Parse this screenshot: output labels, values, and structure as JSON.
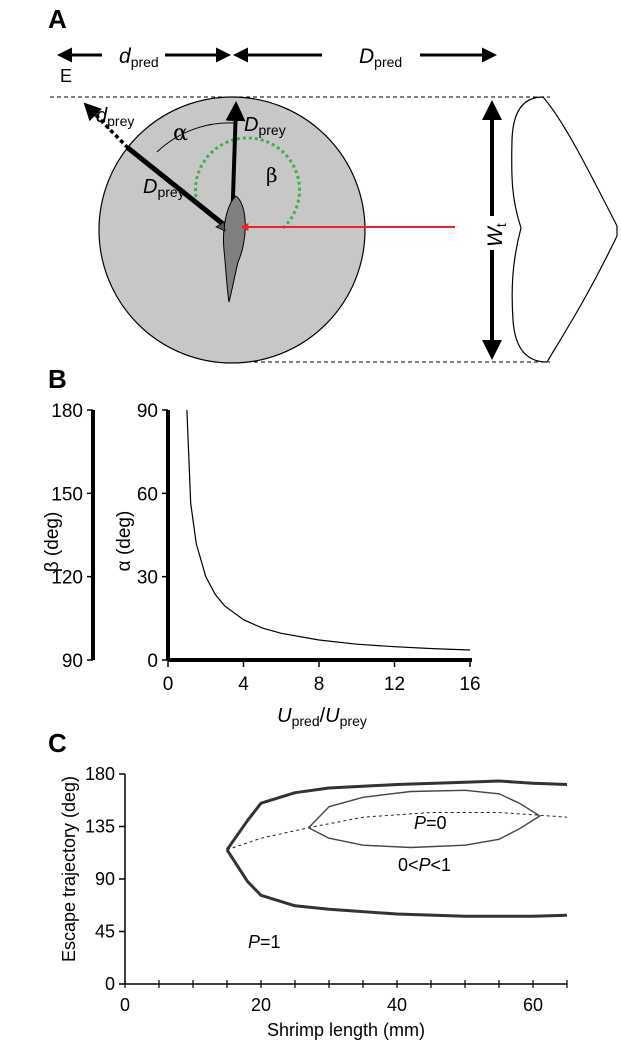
{
  "panel_a": {
    "label": "A",
    "top_left": "d",
    "top_left_sub": "pred",
    "top_right": "D",
    "top_right_sub": "pred",
    "point": "E",
    "prey_small": "d",
    "prey_small_sub": "prey",
    "prey_up": "D",
    "prey_up_sub": "prey",
    "prey_left": "D",
    "prey_left_sub": "prey",
    "alpha": "α",
    "beta": "β",
    "width": "W",
    "width_sub": "t",
    "colors": {
      "disc": "#c7c7c7",
      "predator_path": "#e8242a",
      "beta_arc": "#3cb34a"
    }
  },
  "chart_data": [
    {
      "panel": "B",
      "type": "line",
      "xlabel_main": "U",
      "xlabel_main_sub": "pred",
      "xlabel_sep": "/",
      "xlabel_den": "U",
      "xlabel_den_sub": "prey",
      "ylabel": "α (deg)",
      "ylabel2": "β (deg)",
      "xlim": [
        0,
        16
      ],
      "ylim": [
        0,
        90
      ],
      "y2lim": [
        90,
        180
      ],
      "xticks": [
        "0",
        "4",
        "8",
        "12",
        "16"
      ],
      "yticks": [
        "0",
        "30",
        "60",
        "90"
      ],
      "y2ticks": [
        "90",
        "120",
        "150",
        "180"
      ],
      "series": [
        {
          "x": [
            1.0,
            1.2,
            1.5,
            2.0,
            2.5,
            3.0,
            4.0,
            5.0,
            6.0,
            8.0,
            10.0,
            12.0,
            14.0,
            16.0
          ],
          "y": [
            90,
            56.4,
            41.8,
            30,
            23.6,
            19.5,
            14.5,
            11.5,
            9.6,
            7.2,
            5.7,
            4.8,
            4.1,
            3.6
          ]
        }
      ]
    },
    {
      "panel": "C",
      "type": "line",
      "xlabel": "Shrimp length (mm)",
      "ylabel": "Escape trajectory (deg)",
      "xlim": [
        0,
        65
      ],
      "ylim": [
        0,
        180
      ],
      "xticks": [
        "0",
        "20",
        "40",
        "60"
      ],
      "yticks": [
        "0",
        "45",
        "90",
        "135",
        "180"
      ],
      "annotations": [
        "P=0",
        "0<P<1",
        "P=1"
      ],
      "series": [
        {
          "role": "p1-upper",
          "x": [
            15,
            18,
            20,
            25,
            30,
            40,
            50,
            55,
            60,
            65
          ],
          "y": [
            115,
            140,
            155,
            164,
            168,
            171,
            173,
            174,
            172,
            171
          ]
        },
        {
          "role": "p1-lower",
          "x": [
            15,
            18,
            20,
            25,
            30,
            40,
            50,
            60,
            65
          ],
          "y": [
            115,
            88,
            76,
            67,
            64,
            60,
            58,
            58,
            59
          ]
        },
        {
          "role": "mid-dotted",
          "x": [
            15,
            20,
            27,
            35,
            45,
            55,
            60,
            65
          ],
          "y": [
            115,
            125,
            134,
            143,
            147,
            147,
            145,
            143
          ]
        },
        {
          "role": "p0-loop",
          "x": [
            27,
            30,
            35,
            42,
            50,
            55,
            58,
            61,
            58,
            55,
            50,
            42,
            35,
            30,
            27
          ],
          "y": [
            134,
            152,
            160,
            165,
            166,
            163,
            155,
            144,
            133,
            124,
            119,
            117,
            119,
            125,
            134
          ]
        }
      ]
    }
  ]
}
